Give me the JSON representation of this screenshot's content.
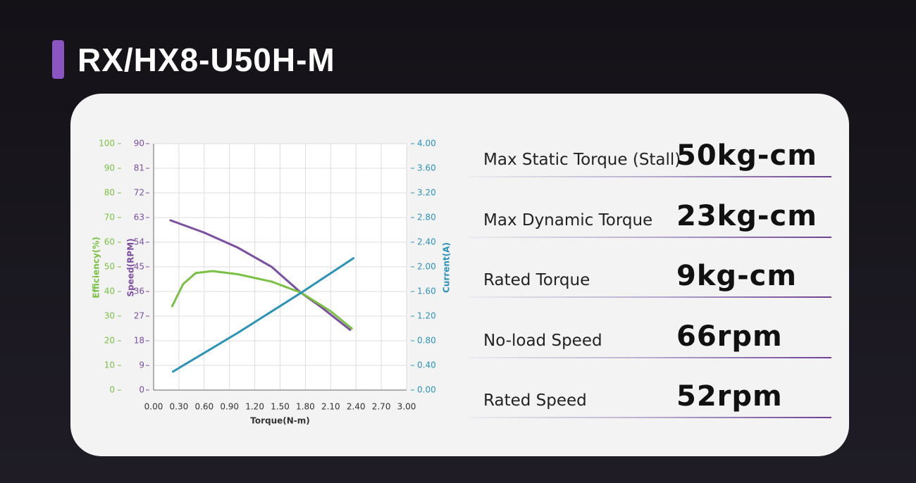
{
  "title": "RX/HX8-U50H-M",
  "chart_data": {
    "type": "line",
    "xlabel": "Torque(N-m)",
    "ylabel": "Speed(RPM)",
    "y2label": "Current(A)",
    "y3label": "Efficiency(%)",
    "xlim": [
      0,
      3
    ],
    "xticks": [
      {
        "value": 0,
        "label": "0.00"
      },
      {
        "value": 0.3,
        "label": "0.30"
      },
      {
        "value": 0.6,
        "label": "0.60"
      },
      {
        "value": 0.9,
        "label": "0.90"
      },
      {
        "value": 1.2,
        "label": "1.20"
      },
      {
        "value": 1.5,
        "label": "1.50"
      },
      {
        "value": 1.8,
        "label": "1.80"
      },
      {
        "value": 2.1,
        "label": "2.10"
      },
      {
        "value": 2.4,
        "label": "2.40"
      },
      {
        "value": 2.7,
        "label": "2.70"
      },
      {
        "value": 3,
        "label": "3.00"
      }
    ],
    "ylim": [
      0,
      90
    ],
    "yticks": [
      0,
      9,
      18,
      27,
      36,
      45,
      54,
      63,
      72,
      81,
      90
    ],
    "y2lim": [
      0,
      4
    ],
    "y2ticks": [
      {
        "value": 0,
        "label": "0.00"
      },
      {
        "value": 0.4,
        "label": "0.40"
      },
      {
        "value": 0.8,
        "label": "0.80"
      },
      {
        "value": 1.2,
        "label": "1.20"
      },
      {
        "value": 1.6,
        "label": "1.60"
      },
      {
        "value": 2,
        "label": "2.00"
      },
      {
        "value": 2.4,
        "label": "2.40"
      },
      {
        "value": 2.8,
        "label": "2.80"
      },
      {
        "value": 3.2,
        "label": "3.20"
      },
      {
        "value": 3.6,
        "label": "3.60"
      },
      {
        "value": 4,
        "label": "4.00"
      }
    ],
    "y3lim": [
      0,
      100
    ],
    "y3ticks": [
      0,
      10,
      20,
      30,
      40,
      50,
      60,
      70,
      80,
      90,
      100
    ],
    "grid": true,
    "series": [
      {
        "name": "Speed",
        "axis": "y",
        "color": "#7b4ea0",
        "x": [
          0.2,
          0.6,
          1.0,
          1.4,
          1.75,
          2.0,
          2.33
        ],
        "values": [
          62,
          57.5,
          52,
          45,
          35.5,
          30,
          22
        ]
      },
      {
        "name": "Efficiency",
        "axis": "y3",
        "color": "#7ac143",
        "x": [
          0.22,
          0.35,
          0.5,
          0.7,
          1.0,
          1.4,
          1.75,
          2.1,
          2.35
        ],
        "values": [
          34,
          43,
          47.5,
          48.3,
          47,
          44,
          39.5,
          32,
          25
        ]
      },
      {
        "name": "Current",
        "axis": "y2",
        "color": "#2a93b8",
        "x": [
          0.23,
          1.0,
          1.75,
          2.37
        ],
        "values": [
          0.3,
          0.93,
          1.58,
          2.14
        ]
      }
    ]
  },
  "specs": [
    {
      "label": "Max Static Torque (Stall)",
      "value": "50kg-cm"
    },
    {
      "label": "Max Dynamic Torque",
      "value": "23kg-cm"
    },
    {
      "label": "Rated Torque",
      "value": "9kg-cm"
    },
    {
      "label": "No-load Speed",
      "value": "66rpm"
    },
    {
      "label": "Rated Speed",
      "value": "52rpm"
    }
  ]
}
